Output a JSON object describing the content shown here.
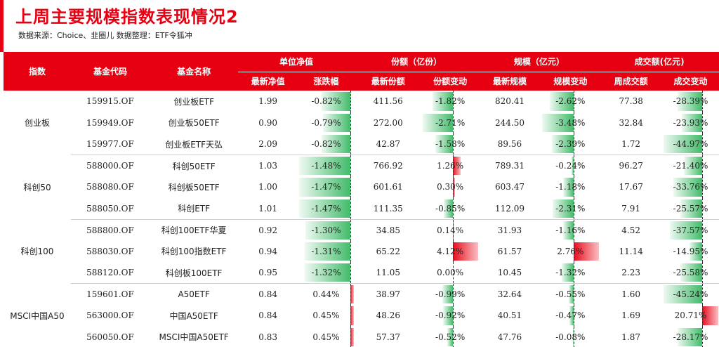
{
  "title": "上周主要规模指数表现情况2",
  "source": "数据来源：Choice、韭圈儿  数据整理：ETF令狐冲",
  "headers": {
    "index": "指数",
    "code": "基金代码",
    "name": "基金名称",
    "nav_group": "单位净值",
    "share_group": "份额（亿份）",
    "scale_group": "规模（亿元）",
    "vol_group": "成交额(亿元)",
    "nav": "最新净值",
    "nav_chg": "涨跌幅",
    "share": "最新份额",
    "share_chg": "份额变动",
    "scale": "最新规模",
    "scale_chg": "规模变动",
    "vol": "周成交额",
    "vol_chg": "成交变动"
  },
  "colors": {
    "accent": "#e60012",
    "negative": "#2eb45a",
    "positive": "#e60012"
  },
  "groups": [
    {
      "index": "创业板",
      "rows": [
        {
          "code": "159915.OF",
          "name": "创业板ETF",
          "nav": "1.99",
          "nav_chg": "-0.82%",
          "share": "411.56",
          "share_chg": "-1.82%",
          "scale": "820.41",
          "scale_chg": "-2.62%",
          "vol": "77.38",
          "vol_chg": "-28.39%"
        },
        {
          "code": "159949.OF",
          "name": "创业板50ETF",
          "nav": "0.90",
          "nav_chg": "-0.79%",
          "share": "272.00",
          "share_chg": "-2.71%",
          "scale": "244.50",
          "scale_chg": "-3.48%",
          "vol": "32.84",
          "vol_chg": "-23.93%"
        },
        {
          "code": "159977.OF",
          "name": "创业板ETF天弘",
          "nav": "2.09",
          "nav_chg": "-0.82%",
          "share": "42.87",
          "share_chg": "-1.58%",
          "scale": "89.56",
          "scale_chg": "-2.39%",
          "vol": "1.72",
          "vol_chg": "-44.97%"
        }
      ]
    },
    {
      "index": "科创50",
      "rows": [
        {
          "code": "588000.OF",
          "name": "科创50ETF",
          "nav": "1.03",
          "nav_chg": "-1.48%",
          "share": "766.92",
          "share_chg": "1.26%",
          "scale": "789.31",
          "scale_chg": "-0.24%",
          "vol": "96.27",
          "vol_chg": "-21.40%"
        },
        {
          "code": "588080.OF",
          "name": "科创板50ETF",
          "nav": "1.00",
          "nav_chg": "-1.47%",
          "share": "601.61",
          "share_chg": "0.30%",
          "scale": "603.47",
          "scale_chg": "-1.18%",
          "vol": "17.67",
          "vol_chg": "-33.76%"
        },
        {
          "code": "588050.OF",
          "name": "科创ETF",
          "nav": "1.01",
          "nav_chg": "-1.47%",
          "share": "111.35",
          "share_chg": "-0.85%",
          "scale": "112.09",
          "scale_chg": "-2.31%",
          "vol": "7.91",
          "vol_chg": "-25.57%"
        }
      ]
    },
    {
      "index": "科创100",
      "rows": [
        {
          "code": "588800.OF",
          "name": "科创100ETF华夏",
          "nav": "0.92",
          "nav_chg": "-1.30%",
          "share": "34.85",
          "share_chg": "0.14%",
          "scale": "31.93",
          "scale_chg": "-1.16%",
          "vol": "4.52",
          "vol_chg": "-37.57%"
        },
        {
          "code": "588030.OF",
          "name": "科创100指数ETF",
          "nav": "0.94",
          "nav_chg": "-1.31%",
          "share": "65.22",
          "share_chg": "4.12%",
          "scale": "61.57",
          "scale_chg": "2.76%",
          "vol": "11.14",
          "vol_chg": "-14.95%"
        },
        {
          "code": "588120.OF",
          "name": "科创板100ETF",
          "nav": "0.95",
          "nav_chg": "-1.32%",
          "share": "11.05",
          "share_chg": "0.00%",
          "scale": "10.45",
          "scale_chg": "-1.32%",
          "vol": "2.23",
          "vol_chg": "-25.58%"
        }
      ]
    },
    {
      "index": "MSCI中国A50",
      "rows": [
        {
          "code": "159601.OF",
          "name": "A50ETF",
          "nav": "0.84",
          "nav_chg": "0.44%",
          "share": "38.97",
          "share_chg": "-0.99%",
          "scale": "32.64",
          "scale_chg": "-0.55%",
          "vol": "1.60",
          "vol_chg": "-45.24%"
        },
        {
          "code": "563000.OF",
          "name": "中国A50ETF",
          "nav": "0.84",
          "nav_chg": "0.45%",
          "share": "48.26",
          "share_chg": "-0.92%",
          "scale": "40.51",
          "scale_chg": "-0.47%",
          "vol": "1.69",
          "vol_chg": "20.71%"
        },
        {
          "code": "560050.OF",
          "name": "MSCI中国A50ETF",
          "nav": "0.83",
          "nav_chg": "0.45%",
          "share": "57.37",
          "share_chg": "-0.52%",
          "scale": "47.76",
          "scale_chg": "-0.08%",
          "vol": "1.87",
          "vol_chg": "-28.17%"
        }
      ]
    }
  ]
}
